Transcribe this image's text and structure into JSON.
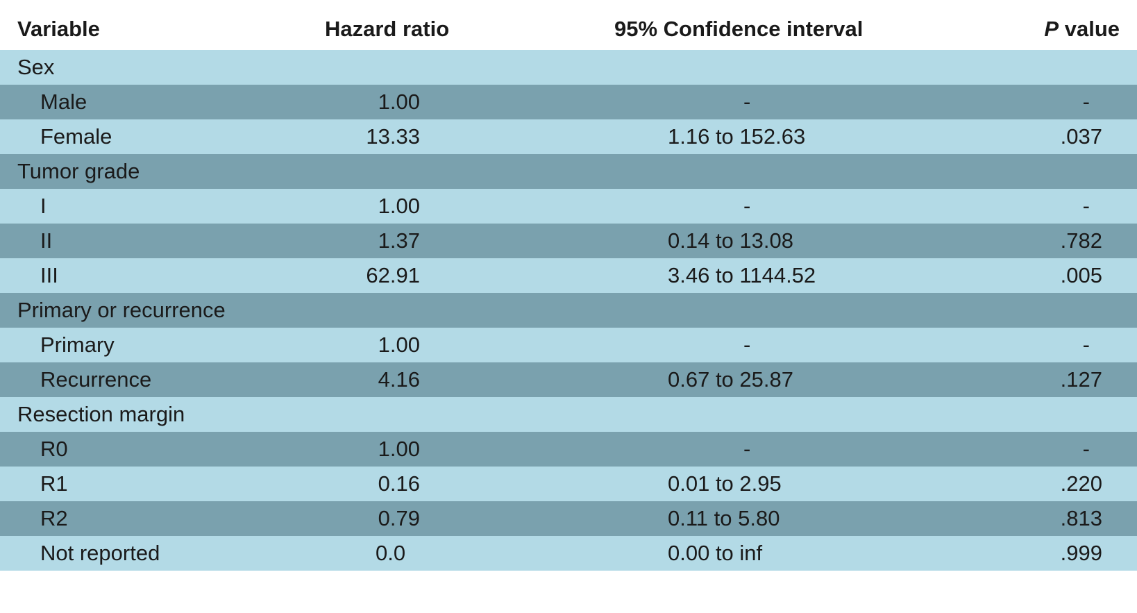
{
  "header": {
    "variable": "Variable",
    "hazard_ratio": "Hazard ratio",
    "ci": "95% Confidence interval",
    "p_italic": "P",
    "p_rest": " value"
  },
  "rows": [
    {
      "type": "group",
      "label": "Sex",
      "hr": "",
      "ci": "",
      "p": ""
    },
    {
      "type": "item",
      "label": "Male",
      "hr": "1.00",
      "ci": "-",
      "p": "-"
    },
    {
      "type": "item",
      "label": "Female",
      "hr": "13.33",
      "ci": "1.16 to 152.63",
      "p": ".037"
    },
    {
      "type": "group",
      "label": "Tumor grade",
      "hr": "",
      "ci": "",
      "p": ""
    },
    {
      "type": "item",
      "label": "I",
      "hr": "1.00",
      "ci": "-",
      "p": "-"
    },
    {
      "type": "item",
      "label": "II",
      "hr": "1.37",
      "ci": "0.14 to 13.08",
      "p": ".782"
    },
    {
      "type": "item",
      "label": "III",
      "hr": "62.91",
      "ci": "3.46 to 1144.52",
      "p": ".005"
    },
    {
      "type": "group",
      "label": "Primary or recurrence",
      "hr": "",
      "ci": "",
      "p": ""
    },
    {
      "type": "item",
      "label": "Primary",
      "hr": "1.00",
      "ci": "-",
      "p": "-"
    },
    {
      "type": "item",
      "label": "Recurrence",
      "hr": "4.16",
      "ci": "0.67 to 25.87",
      "p": ".127"
    },
    {
      "type": "group",
      "label": "Resection margin",
      "hr": "",
      "ci": "",
      "p": ""
    },
    {
      "type": "item",
      "label": "R0",
      "hr": "1.00",
      "ci": "-",
      "p": "-"
    },
    {
      "type": "item",
      "label": "R1",
      "hr": "0.16",
      "ci": "0.01 to 2.95",
      "p": ".220"
    },
    {
      "type": "item",
      "label": "R2",
      "hr": "0.79",
      "ci": "0.11 to 5.80",
      "p": ".813"
    },
    {
      "type": "item",
      "label": "Not reported",
      "hr": "0.0",
      "ci": "0.00 to inf",
      "p": ".999"
    }
  ],
  "colors": {
    "row_light": "#b3dae6",
    "row_dark": "#7aa1ae",
    "text": "#1a1a1a"
  }
}
